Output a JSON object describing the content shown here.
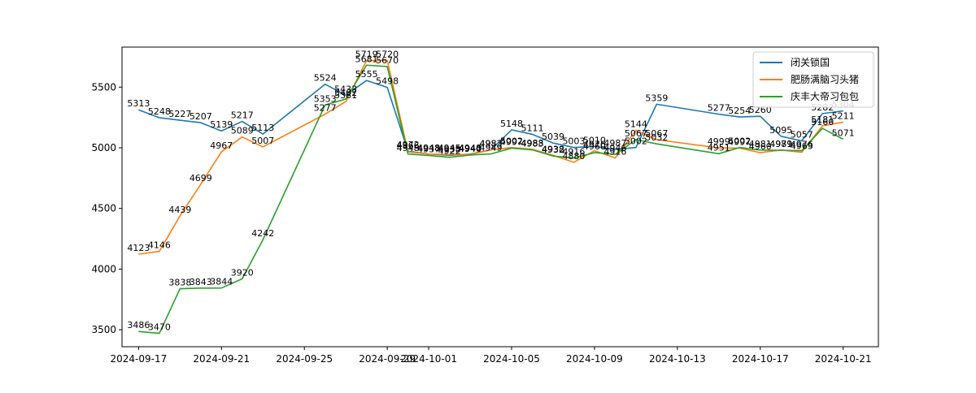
{
  "chart_data": {
    "type": "line",
    "title": "",
    "xlabel": "",
    "ylabel": "",
    "x": [
      "2024-09-17",
      "2024-09-18",
      "2024-09-19",
      "2024-09-20",
      "2024-09-21",
      "2024-09-22",
      "2024-09-23",
      "2024-09-26",
      "2024-09-27",
      "2024-09-28",
      "2024-09-29",
      "2024-09-30",
      "2024-10-01",
      "2024-10-02",
      "2024-10-03",
      "2024-10-04",
      "2024-10-05",
      "2024-10-06",
      "2024-10-07",
      "2024-10-08",
      "2024-10-09",
      "2024-10-10",
      "2024-10-11",
      "2024-10-12",
      "2024-10-15",
      "2024-10-16",
      "2024-10-17",
      "2024-10-18",
      "2024-10-19",
      "2024-10-20",
      "2024-10-21"
    ],
    "x_ticks": [
      "2024-09-17",
      "2024-09-21",
      "2024-09-25",
      "2024-09-29",
      "2024-10-01",
      "2024-10-05",
      "2024-10-09",
      "2024-10-13",
      "2024-10-17",
      "2024-10-21"
    ],
    "y_ticks": [
      3500,
      4000,
      4500,
      5000,
      5500
    ],
    "ylim": [
      3360,
      5830
    ],
    "xlim": [
      "2024-09-16.2",
      "2024-10-22.7"
    ],
    "grid": false,
    "legend_position": "top-right",
    "series": [
      {
        "name": "闭关锁国",
        "color": "#1f77b4",
        "values": [
          5313,
          5248,
          5227,
          5207,
          5139,
          5217,
          5113,
          5524,
          5433,
          5555,
          5498,
          4972,
          4948,
          4938,
          4948,
          4983,
          5148,
          5111,
          5039,
          5003,
          5010,
          4987,
          5002,
          5359,
          5277,
          5254,
          5260,
          5095,
          5057,
          5282,
          5304
        ]
      },
      {
        "name": "肥肠满脑习头猪",
        "color": "#ff7f0e",
        "values": [
          4123,
          4146,
          4439,
          4699,
          4967,
          5089,
          5007,
          5277,
          5381,
          5719,
          5720,
          4966,
          4948,
          4945,
          4944,
          4983,
          5002,
          4988,
          4938,
          4880,
          4976,
          4916,
          5144,
          5067,
          4999,
          4997,
          4960,
          4981,
          4963,
          5181,
          5211
        ]
      },
      {
        "name": "庆丰大帝习包包",
        "color": "#2ca02c",
        "values": [
          3486,
          3470,
          3838,
          3843,
          3844,
          3920,
          4242,
          5353,
          5402,
          5681,
          5670,
          4948,
          4937,
          4922,
          4940,
          4949,
          4997,
          4983,
          4932,
          4916,
          4960,
          4946,
          5067,
          5032,
          4951,
          5002,
          4981,
          4979,
          4976,
          5160,
          5071
        ]
      }
    ]
  }
}
